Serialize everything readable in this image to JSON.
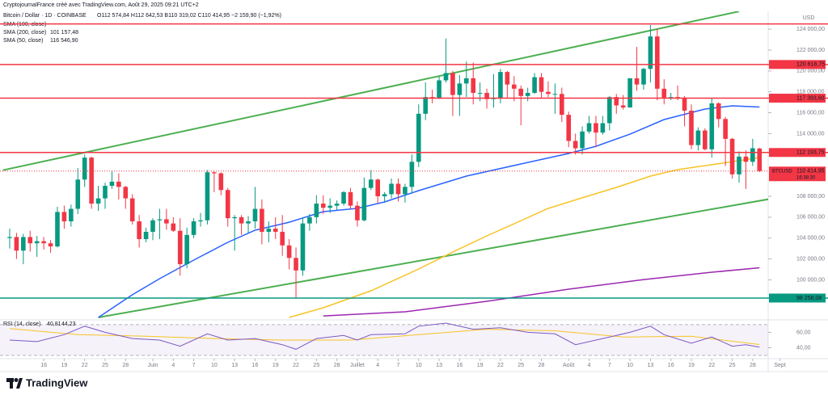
{
  "credit": "CryptojournalFrance créé avec TradingView.com, Août 29, 2025 09:21 UTC+2",
  "brand": "TradingView",
  "chart_data": {
    "type": "candlestick",
    "title": "Bitcoin / Dollar · 1D · COINBASE",
    "ohlc_text": "O112 574,84 H112 642,53 B110 319,02 C110 414,95 −2 159,90 (−1,92%)",
    "currency": "USD",
    "symbol": "BTCUSD",
    "countdown": "16:38:30",
    "last_label": "110 414,95",
    "up_color": "#089981",
    "down_color": "#f23645",
    "open": [
      104000,
      104100,
      102800,
      104100,
      103500,
      103700,
      103500,
      103200,
      106500,
      105600,
      106800,
      109600,
      111700,
      107300,
      107800,
      109000,
      109400,
      108900,
      107800,
      105600,
      103900,
      104600,
      105700,
      105800,
      105400,
      104700,
      101500,
      104300,
      105600,
      105700,
      110300,
      110200,
      108600,
      105900,
      106000,
      105400,
      105600,
      106800,
      104600,
      104900,
      104600,
      103300,
      102100,
      100900,
      105400,
      106000,
      107300,
      106900,
      107100,
      107300,
      108400,
      107100,
      105700,
      108800,
      109600,
      108000,
      108200,
      109200,
      108200,
      108900,
      111300,
      115900,
      117500,
      117400,
      119100,
      119800,
      117700,
      118800,
      119300,
      117900,
      117900,
      117300,
      117400,
      119900,
      118700,
      118300,
      117600,
      117900,
      119400,
      118000,
      117800,
      117800,
      115800,
      113300,
      112600,
      114200,
      115000,
      114100,
      115000,
      117500,
      116700,
      116500,
      119300,
      118700,
      120200,
      123300,
      118300,
      117400,
      117500,
      117400,
      116200,
      112900,
      114300,
      112500,
      116900,
      115400,
      113500,
      110100,
      111800,
      111300,
      112574.84
    ],
    "high": [
      104900,
      104500,
      104400,
      104700,
      104200,
      104100,
      103800,
      107000,
      107100,
      107200,
      110700,
      112000,
      111800,
      109000,
      109300,
      110400,
      110200,
      109000,
      108200,
      106200,
      105000,
      105900,
      106800,
      106800,
      106000,
      105900,
      105000,
      105900,
      106400,
      110500,
      110400,
      110300,
      108800,
      106200,
      106200,
      106100,
      108900,
      107700,
      105600,
      106000,
      106200,
      103900,
      103100,
      106000,
      106300,
      108100,
      108100,
      107800,
      107600,
      108500,
      108800,
      107500,
      109800,
      110500,
      109700,
      108400,
      109700,
      109700,
      109200,
      112000,
      116800,
      118900,
      118200,
      119500,
      123100,
      120000,
      119600,
      120900,
      120800,
      118900,
      118300,
      119700,
      120200,
      120000,
      119500,
      118600,
      118400,
      119800,
      119800,
      119000,
      118800,
      118400,
      116100,
      114000,
      114700,
      115700,
      115700,
      115700,
      117600,
      117800,
      117700,
      119300,
      122300,
      120300,
      124400,
      124000,
      119200,
      117900,
      118600,
      117600,
      116800,
      114600,
      114500,
      117400,
      117000,
      115600,
      113600,
      112300,
      112400,
      113500,
      112642.53
    ],
    "low": [
      103000,
      102000,
      101500,
      102700,
      102200,
      102900,
      102600,
      103100,
      104900,
      105100,
      106300,
      108900,
      106800,
      106600,
      106800,
      108700,
      107700,
      106800,
      105300,
      103100,
      103600,
      103800,
      103900,
      104800,
      104600,
      100400,
      101100,
      104000,
      105100,
      105300,
      108400,
      108100,
      105100,
      102800,
      104300,
      104500,
      104900,
      103400,
      103600,
      103900,
      102300,
      101000,
      98200,
      100400,
      104700,
      105400,
      106300,
      106400,
      106700,
      107100,
      106800,
      105100,
      105600,
      108600,
      107300,
      107400,
      107800,
      107500,
      107400,
      108300,
      110800,
      115300,
      116900,
      117300,
      118900,
      115700,
      115700,
      117500,
      116800,
      117100,
      116400,
      116500,
      116900,
      117400,
      117100,
      114800,
      117100,
      117800,
      117400,
      117500,
      115900,
      115100,
      112700,
      112000,
      112000,
      114000,
      112700,
      113900,
      114300,
      115900,
      116300,
      116500,
      118100,
      118200,
      118900,
      117200,
      116800,
      117200,
      117200,
      114700,
      112500,
      112400,
      112400,
      111700,
      114600,
      110900,
      109700,
      109300,
      108700,
      110900,
      110319.02
    ],
    "close": [
      104100,
      102800,
      104100,
      103500,
      103700,
      103500,
      103200,
      106500,
      105600,
      106800,
      109600,
      111700,
      107300,
      107800,
      109000,
      109400,
      108900,
      107800,
      105600,
      103900,
      104600,
      105700,
      105800,
      105400,
      104700,
      101500,
      104300,
      105600,
      105700,
      110300,
      110200,
      108600,
      105900,
      106000,
      105400,
      105600,
      106800,
      104600,
      104900,
      104600,
      103300,
      102100,
      100900,
      105400,
      106000,
      107300,
      106900,
      107100,
      107300,
      108400,
      107100,
      105700,
      108800,
      109600,
      108000,
      108200,
      109200,
      108200,
      108900,
      111300,
      115900,
      117500,
      117400,
      119100,
      119800,
      117700,
      118800,
      119300,
      117900,
      117900,
      117300,
      117400,
      119900,
      118700,
      118300,
      117600,
      117900,
      119400,
      118000,
      117800,
      117800,
      115800,
      113300,
      112600,
      114200,
      115000,
      114100,
      115000,
      117500,
      116700,
      116500,
      119300,
      118700,
      120200,
      123300,
      118300,
      117400,
      117500,
      117400,
      116200,
      112900,
      114300,
      112500,
      116900,
      115400,
      113500,
      110100,
      111800,
      111300,
      112600,
      110414.95
    ],
    "xlim": [
      -1.42,
      111.27
    ],
    "xticks": [
      {
        "value": 5,
        "label": "16"
      },
      {
        "value": 8,
        "label": "19"
      },
      {
        "value": 11,
        "label": "22"
      },
      {
        "value": 14,
        "label": "25"
      },
      {
        "value": 17,
        "label": "28"
      },
      {
        "value": 21,
        "label": "Juin"
      },
      {
        "value": 24,
        "label": "4"
      },
      {
        "value": 27,
        "label": "7"
      },
      {
        "value": 30,
        "label": "10"
      },
      {
        "value": 33,
        "label": "13"
      },
      {
        "value": 36,
        "label": "16"
      },
      {
        "value": 39,
        "label": "19"
      },
      {
        "value": 42,
        "label": "22"
      },
      {
        "value": 45,
        "label": "25"
      },
      {
        "value": 48,
        "label": "28"
      },
      {
        "value": 51,
        "label": "Juillet"
      },
      {
        "value": 54,
        "label": "4"
      },
      {
        "value": 57,
        "label": "7"
      },
      {
        "value": 60,
        "label": "10"
      },
      {
        "value": 63,
        "label": "13"
      },
      {
        "value": 66,
        "label": "16"
      },
      {
        "value": 69,
        "label": "19"
      },
      {
        "value": 72,
        "label": "22"
      },
      {
        "value": 75,
        "label": "25"
      },
      {
        "value": 78,
        "label": "28"
      },
      {
        "value": 82,
        "label": "Août"
      },
      {
        "value": 85,
        "label": "4"
      },
      {
        "value": 88,
        "label": "7"
      },
      {
        "value": 91,
        "label": "10"
      },
      {
        "value": 94,
        "label": "13"
      },
      {
        "value": 97,
        "label": "16"
      },
      {
        "value": 100,
        "label": "19"
      },
      {
        "value": 103,
        "label": "22"
      },
      {
        "value": 106,
        "label": "25"
      },
      {
        "value": 109,
        "label": "28"
      },
      {
        "value": 113,
        "label": "Sept"
      }
    ],
    "ylim": [
      96400,
      125400
    ],
    "yticks": [
      {
        "value": 124000,
        "label": "124 000,00"
      },
      {
        "value": 122000,
        "label": "122 000,00"
      },
      {
        "value": 120000,
        "label": "120 000,00"
      },
      {
        "value": 118000,
        "label": "118 000,00"
      },
      {
        "value": 116000,
        "label": "116 000,00"
      },
      {
        "value": 114000,
        "label": "114 000,00"
      },
      {
        "value": 108000,
        "label": "108 000,00"
      },
      {
        "value": 106000,
        "label": "106 000,00"
      },
      {
        "value": 104000,
        "label": "104 000,00"
      },
      {
        "value": 102000,
        "label": "102 000,00"
      },
      {
        "value": 100000,
        "label": "100 000,00"
      }
    ],
    "levels": [
      {
        "value": 124500,
        "color": "#f23645"
      },
      {
        "value": 120618.75,
        "label": "120 618,75",
        "color": "#f23645"
      },
      {
        "value": 117393.6,
        "label": "117 393,60",
        "color": "#f23645"
      },
      {
        "value": 112193.75,
        "label": "112 193,75",
        "color": "#f23645"
      },
      {
        "value": 98258.08,
        "label": "98 258,08",
        "color": "#089981"
      }
    ],
    "trendlines": [
      {
        "color": "#4caf50",
        "x": [
          -1,
          107
        ],
        "values": [
          110500,
          125700
        ]
      },
      {
        "color": "#4caf50",
        "x": [
          13,
          112
        ],
        "values": [
          96400,
          107800
        ]
      }
    ],
    "series": [
      {
        "name": "SMA (100, close)",
        "color": "#f7c325",
        "x": [
          41,
          46,
          53,
          60,
          65,
          70,
          74,
          79,
          84,
          89,
          94,
          98,
          103,
          110
        ],
        "values": [
          96400,
          97330,
          98950,
          101040,
          102660,
          104210,
          105370,
          106840,
          107850,
          108850,
          109930,
          110550,
          111020,
          111710
        ]
      },
      {
        "name": "SMA (200, close)",
        "color": "#9c27b0",
        "x": [
          46,
          58,
          70,
          82,
          93,
          103,
          110
        ],
        "values": [
          96550,
          96940,
          97950,
          99110,
          100030,
          100730,
          101157.48
        ],
        "value_label": "101 157,48"
      },
      {
        "name": "SMA (50, close)",
        "color": "#2962ff",
        "x": [
          13,
          18,
          22,
          27,
          32,
          36,
          41,
          46,
          51,
          55,
          60,
          67,
          75,
          82,
          86,
          91,
          96,
          102,
          106,
          110
        ],
        "values": [
          96400,
          98570,
          100110,
          101890,
          103590,
          104750,
          105520,
          106530,
          106840,
          107460,
          108540,
          109930,
          111090,
          112100,
          112790,
          113950,
          115350,
          116350,
          116660,
          116546.9
        ],
        "value_label": "116 546,90"
      }
    ],
    "rsi": {
      "name": "RSI (14, close)",
      "color": "#7e57c2",
      "value_label": "40,81",
      "x": [
        0,
        4,
        8,
        11,
        14,
        18,
        22,
        25,
        29,
        32,
        36,
        40,
        42,
        45,
        49,
        51,
        53,
        58,
        60,
        64,
        68,
        72,
        76,
        80,
        83,
        87,
        91,
        94,
        96,
        100,
        103,
        106,
        108,
        110
      ],
      "values": [
        50,
        48,
        57,
        68,
        60,
        52,
        50,
        42,
        58,
        50,
        52,
        44,
        38,
        52,
        56,
        50,
        57,
        58,
        68,
        72,
        64,
        66,
        60,
        58,
        44,
        52,
        60,
        68,
        57,
        46,
        54,
        42,
        44,
        40.81
      ],
      "ma": {
        "color": "#f7c325",
        "value_label": "44,23",
        "x": [
          0,
          10,
          20,
          30,
          40,
          50,
          60,
          70,
          80,
          90,
          100,
          110
        ],
        "values": [
          65,
          57,
          55,
          52,
          50,
          50,
          57,
          64,
          62,
          54,
          55,
          44.23
        ]
      },
      "ylim": [
        29,
        72
      ],
      "band": [
        30,
        70
      ],
      "yticks": [
        {
          "value": 60,
          "label": "60,00"
        },
        {
          "value": 40,
          "label": "40,00"
        }
      ]
    }
  }
}
